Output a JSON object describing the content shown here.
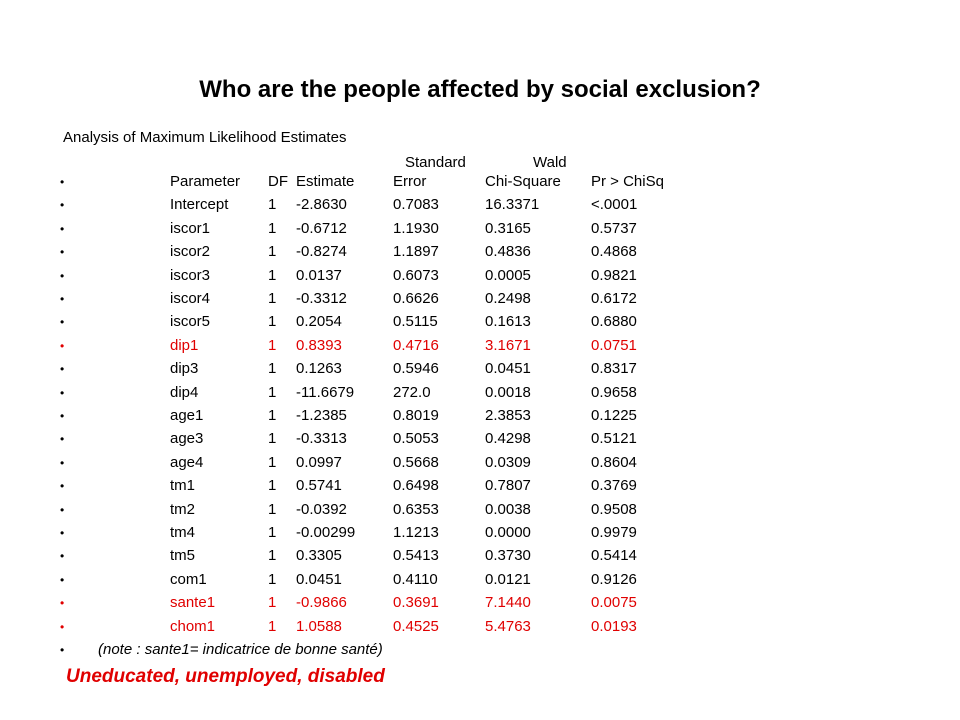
{
  "slide": {
    "title": "Who are the people affected by social exclusion?",
    "analysis_title": "Analysis of Maximum Likelihood Estimates",
    "header_standard": "Standard",
    "header_wald": "Wald",
    "bullet": "•",
    "columns": [
      "Parameter",
      "DF",
      "Estimate",
      "Error",
      "Chi-Square",
      "Pr > ChiSq"
    ],
    "rows": [
      {
        "parameter": "Intercept",
        "df": "1",
        "estimate": "-2.8630",
        "error": "0.7083",
        "chisq": "16.3371",
        "pr": "<.0001",
        "highlight": false
      },
      {
        "parameter": "iscor1",
        "df": "1",
        "estimate": "-0.6712",
        "error": "1.1930",
        "chisq": "0.3165",
        "pr": "0.5737",
        "highlight": false
      },
      {
        "parameter": "iscor2",
        "df": "1",
        "estimate": "-0.8274",
        "error": "1.1897",
        "chisq": "0.4836",
        "pr": "0.4868",
        "highlight": false
      },
      {
        "parameter": "iscor3",
        "df": "1",
        "estimate": "0.0137",
        "error": "0.6073",
        "chisq": "0.0005",
        "pr": "0.9821",
        "highlight": false
      },
      {
        "parameter": "iscor4",
        "df": "1",
        "estimate": "-0.3312",
        "error": "0.6626",
        "chisq": "0.2498",
        "pr": "0.6172",
        "highlight": false
      },
      {
        "parameter": "iscor5",
        "df": "1",
        "estimate": "0.2054",
        "error": "0.5115",
        "chisq": "0.1613",
        "pr": "0.6880",
        "highlight": false
      },
      {
        "parameter": "dip1",
        "df": "1",
        "estimate": "0.8393",
        "error": "0.4716",
        "chisq": "3.1671",
        "pr": "0.0751",
        "highlight": true
      },
      {
        "parameter": "dip3",
        "df": "1",
        "estimate": "0.1263",
        "error": "0.5946",
        "chisq": "0.0451",
        "pr": "0.8317",
        "highlight": false
      },
      {
        "parameter": "dip4",
        "df": "1",
        "estimate": "-11.6679",
        "error": "272.0",
        "chisq": "0.0018",
        "pr": "0.9658",
        "highlight": false
      },
      {
        "parameter": "age1",
        "df": "1",
        "estimate": "-1.2385",
        "error": "0.8019",
        "chisq": "2.3853",
        "pr": "0.1225",
        "highlight": false
      },
      {
        "parameter": "age3",
        "df": "1",
        "estimate": "-0.3313",
        "error": "0.5053",
        "chisq": "0.4298",
        "pr": "0.5121",
        "highlight": false
      },
      {
        "parameter": "age4",
        "df": "1",
        "estimate": "0.0997",
        "error": "0.5668",
        "chisq": "0.0309",
        "pr": "0.8604",
        "highlight": false
      },
      {
        "parameter": "tm1",
        "df": "1",
        "estimate": "0.5741",
        "error": "0.6498",
        "chisq": "0.7807",
        "pr": "0.3769",
        "highlight": false
      },
      {
        "parameter": "tm2",
        "df": "1",
        "estimate": "-0.0392",
        "error": "0.6353",
        "chisq": "0.0038",
        "pr": "0.9508",
        "highlight": false
      },
      {
        "parameter": "tm4",
        "df": "1",
        "estimate": "-0.00299",
        "error": "1.1213",
        "chisq": "0.0000",
        "pr": "0.9979",
        "highlight": false
      },
      {
        "parameter": "tm5",
        "df": "1",
        "estimate": "0.3305",
        "error": "0.5413",
        "chisq": "0.3730",
        "pr": "0.5414",
        "highlight": false
      },
      {
        "parameter": "com1",
        "df": "1",
        "estimate": "0.0451",
        "error": "0.4110",
        "chisq": "0.0121",
        "pr": "0.9126",
        "highlight": false
      },
      {
        "parameter": "sante1",
        "df": "1",
        "estimate": "-0.9866",
        "error": "0.3691",
        "chisq": "7.1440",
        "pr": "0.0075",
        "highlight": true
      },
      {
        "parameter": "chom1",
        "df": "1",
        "estimate": "1.0588",
        "error": "0.4525",
        "chisq": "5.4763",
        "pr": "0.0193",
        "highlight": true
      }
    ],
    "note": "(note : sante1= indicatrice de bonne santé)",
    "summary": "Uneducated, unemployed, disabled",
    "highlight_color": "#e00000"
  }
}
